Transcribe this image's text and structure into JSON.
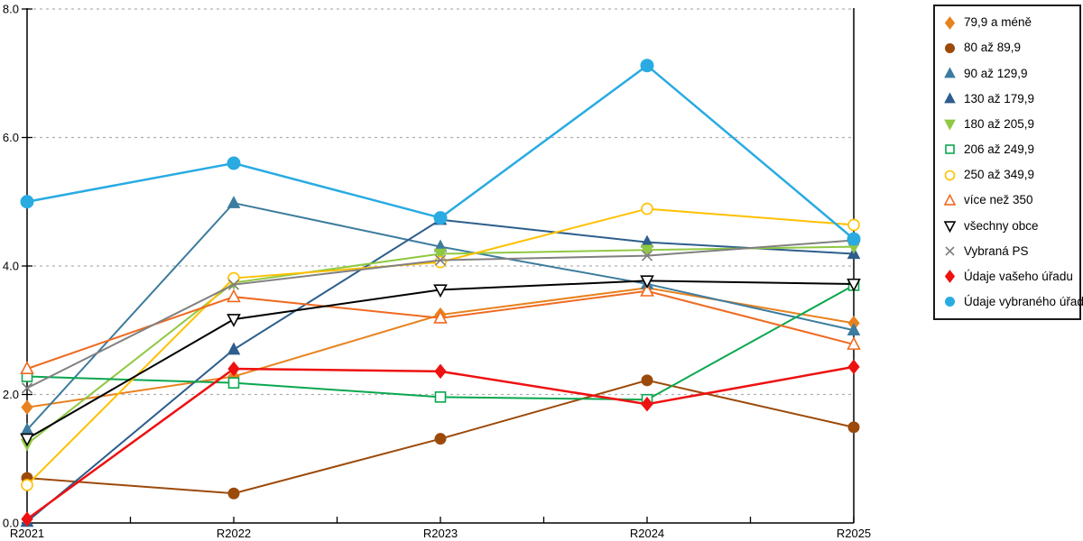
{
  "chart_data": {
    "type": "line",
    "title": "",
    "xlabel": "",
    "ylabel": "",
    "x_categories": [
      "R2021",
      "R2022",
      "R2023",
      "R2024",
      "R2025"
    ],
    "y_tick_labels": [
      "0.0",
      "2.0",
      "4.0",
      "6.0",
      "8.0"
    ],
    "y_tick_values": [
      0,
      2,
      4,
      6,
      8
    ],
    "ylim": [
      0,
      8
    ],
    "grid": "horizontal-dashed",
    "gridline_color": "#b0b0b0",
    "axis_color": "#000000",
    "legend_position": "right-box",
    "series": [
      {
        "name": "79,9 a méně",
        "marker": "diamond",
        "marker_fill": "solid",
        "color": "#E8821E",
        "values": [
          1.8,
          2.28,
          3.24,
          3.66,
          3.11
        ]
      },
      {
        "name": "80 až 89,9",
        "marker": "circle",
        "marker_fill": "solid",
        "color": "#9C4A0A",
        "values": [
          0.7,
          0.46,
          1.31,
          2.22,
          1.49
        ]
      },
      {
        "name": "90 až 129,9",
        "marker": "triangle-up",
        "marker_fill": "solid",
        "color": "#3D7C9E",
        "values": [
          1.45,
          4.98,
          4.3,
          3.72,
          3.0
        ]
      },
      {
        "name": "130 až 179,9",
        "marker": "triangle-up",
        "marker_fill": "solid",
        "color": "#2D5E8C",
        "values": [
          0.02,
          2.7,
          4.72,
          4.37,
          4.19
        ]
      },
      {
        "name": "180 až 205,9",
        "marker": "triangle-down",
        "marker_fill": "solid",
        "color": "#8FC842",
        "values": [
          1.23,
          3.74,
          4.19,
          4.25,
          4.3
        ]
      },
      {
        "name": "206 až 249,9",
        "marker": "square",
        "marker_fill": "open",
        "color": "#0AA74F",
        "values": [
          2.28,
          2.18,
          1.96,
          1.92,
          3.7
        ]
      },
      {
        "name": "250 až 349,9",
        "marker": "circle",
        "marker_fill": "open",
        "color": "#FFC000",
        "values": [
          0.59,
          3.81,
          4.06,
          4.89,
          4.64
        ]
      },
      {
        "name": "více než 350",
        "marker": "triangle-up",
        "marker_fill": "open",
        "color": "#EF6A21",
        "values": [
          2.4,
          3.52,
          3.19,
          3.61,
          2.78
        ]
      },
      {
        "name": "všechny obce",
        "marker": "triangle-down",
        "marker_fill": "open",
        "color": "#000000",
        "values": [
          1.31,
          3.17,
          3.63,
          3.77,
          3.72
        ]
      },
      {
        "name": "Vybraná PS",
        "marker": "x",
        "marker_fill": "line",
        "color": "#808080",
        "values": [
          2.1,
          3.71,
          4.09,
          4.16,
          4.4
        ]
      },
      {
        "name": "Údaje vašeho úřadu",
        "marker": "diamond",
        "marker_fill": "solid",
        "color": "#EE1111",
        "values": [
          0.06,
          2.4,
          2.36,
          1.85,
          2.43
        ]
      },
      {
        "name": "Údaje vybraného úřadu",
        "marker": "circle",
        "marker_fill": "solid",
        "color": "#29ABE2",
        "values": [
          5.0,
          5.6,
          4.75,
          7.12,
          4.42
        ]
      }
    ]
  }
}
